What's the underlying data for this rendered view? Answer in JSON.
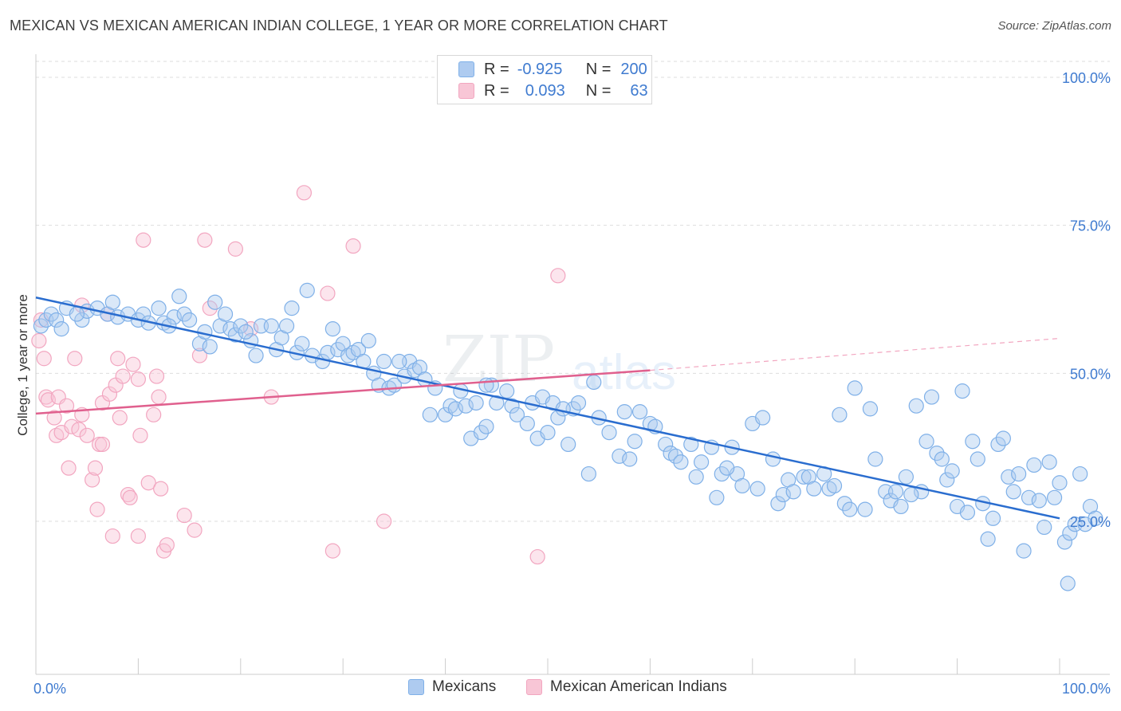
{
  "title": "MEXICAN VS MEXICAN AMERICAN INDIAN COLLEGE, 1 YEAR OR MORE CORRELATION CHART",
  "source": "Source: ZipAtlas.com",
  "watermark": {
    "zip": "ZIP",
    "atlas": "atlas"
  },
  "colors": {
    "blue": "#7fb0e8",
    "blue_line": "#2a6dcf",
    "blue_fill": "#aecbf0",
    "pink": "#f2a6c0",
    "pink_line": "#e0608e",
    "pink_fill": "#f8c6d6",
    "grid": "#dddddd",
    "tick_text": "#3f7bd0"
  },
  "legend": {
    "rows": [
      {
        "r_label": "R =",
        "r_value": "-0.925",
        "n_label": "N =",
        "n_value": "200"
      },
      {
        "r_label": "R =",
        "r_value": "0.093",
        "n_label": "N =",
        "n_value": "63"
      }
    ]
  },
  "bottom_legend": {
    "series1": "Mexicans",
    "series2": "Mexican American Indians"
  },
  "chart_data": {
    "type": "scatter",
    "title": "MEXICAN VS MEXICAN AMERICAN INDIAN COLLEGE, 1 YEAR OR MORE CORRELATION CHART",
    "xlabel": "",
    "ylabel": "College, 1 year or more",
    "xlim": [
      0,
      100
    ],
    "ylim": [
      0,
      105
    ],
    "x_tick_labels": [
      "0.0%",
      "100.0%"
    ],
    "y_ticks": [
      25,
      50,
      75,
      100
    ],
    "y_tick_labels": [
      "25.0%",
      "50.0%",
      "75.0%",
      "100.0%"
    ],
    "series": [
      {
        "name": "Mexicans",
        "R": -0.925,
        "N": 200,
        "trend": {
          "x": [
            0,
            100
          ],
          "y": [
            62.8,
            25.5
          ]
        },
        "points": [
          [
            0.5,
            58
          ],
          [
            1,
            59
          ],
          [
            1.5,
            60
          ],
          [
            2,
            59
          ],
          [
            2.5,
            57.5
          ],
          [
            3,
            61
          ],
          [
            4.5,
            59
          ],
          [
            5,
            60.5
          ],
          [
            6,
            61
          ],
          [
            7,
            60
          ],
          [
            7.5,
            62
          ],
          [
            8,
            59.5
          ],
          [
            9,
            60
          ],
          [
            10,
            59
          ],
          [
            10.5,
            60
          ],
          [
            11,
            58.5
          ],
          [
            12,
            61
          ],
          [
            12.5,
            58.5
          ],
          [
            13.5,
            59.5
          ],
          [
            14,
            63
          ],
          [
            14.5,
            60
          ],
          [
            15,
            59
          ],
          [
            16,
            55
          ],
          [
            16.5,
            57
          ],
          [
            17,
            54.5
          ],
          [
            17.5,
            62
          ],
          [
            18,
            58
          ],
          [
            18.5,
            60
          ],
          [
            19,
            57.5
          ],
          [
            19.5,
            56.5
          ],
          [
            20,
            58
          ],
          [
            21,
            55.5
          ],
          [
            21.5,
            53
          ],
          [
            22,
            58
          ],
          [
            23,
            58
          ],
          [
            23.5,
            54
          ],
          [
            24,
            56
          ],
          [
            25,
            61
          ],
          [
            25.5,
            53.5
          ],
          [
            26,
            55
          ],
          [
            26.5,
            64
          ],
          [
            27,
            53
          ],
          [
            28,
            52
          ],
          [
            28.5,
            53.5
          ],
          [
            29,
            57.5
          ],
          [
            29.5,
            54
          ],
          [
            30,
            55
          ],
          [
            30.5,
            53
          ],
          [
            31,
            53.5
          ],
          [
            31.5,
            54
          ],
          [
            32,
            52
          ],
          [
            32.5,
            55.5
          ],
          [
            33,
            50
          ],
          [
            33.5,
            48
          ],
          [
            34,
            52
          ],
          [
            34.5,
            47.5
          ],
          [
            35,
            48
          ],
          [
            36,
            49.5
          ],
          [
            36.5,
            52
          ],
          [
            37,
            50.5
          ],
          [
            37.5,
            51
          ],
          [
            38,
            49
          ],
          [
            39,
            47.5
          ],
          [
            38.5,
            43
          ],
          [
            40,
            43
          ],
          [
            40.5,
            44.5
          ],
          [
            41,
            44
          ],
          [
            41.5,
            47
          ],
          [
            42,
            44.5
          ],
          [
            42.5,
            39
          ],
          [
            43,
            45
          ],
          [
            43.5,
            40
          ],
          [
            44,
            41
          ],
          [
            44.5,
            48
          ],
          [
            45,
            45
          ],
          [
            46,
            47
          ],
          [
            46.5,
            44.5
          ],
          [
            47,
            43
          ],
          [
            48,
            41.5
          ],
          [
            48.5,
            45
          ],
          [
            49,
            39
          ],
          [
            49.5,
            46
          ],
          [
            50,
            40
          ],
          [
            50.5,
            45
          ],
          [
            51,
            42.5
          ],
          [
            52,
            38
          ],
          [
            52.5,
            44
          ],
          [
            53,
            45
          ],
          [
            54,
            33
          ],
          [
            54.5,
            48.5
          ],
          [
            55,
            42.5
          ],
          [
            56,
            40
          ],
          [
            57,
            36
          ],
          [
            57.5,
            43.5
          ],
          [
            58,
            35.5
          ],
          [
            59,
            43.5
          ],
          [
            60,
            41.5
          ],
          [
            60.5,
            41
          ],
          [
            61.5,
            38
          ],
          [
            62,
            36.5
          ],
          [
            62.5,
            36
          ],
          [
            63,
            35
          ],
          [
            64,
            38
          ],
          [
            64.5,
            32.5
          ],
          [
            65,
            35
          ],
          [
            66,
            37.5
          ],
          [
            66.5,
            29
          ],
          [
            67,
            33
          ],
          [
            68,
            37.5
          ],
          [
            68.5,
            33
          ],
          [
            69,
            31
          ],
          [
            70,
            41.5
          ],
          [
            70.5,
            30.5
          ],
          [
            71,
            42.5
          ],
          [
            72,
            35.5
          ],
          [
            72.5,
            28
          ],
          [
            73,
            29.5
          ],
          [
            73.5,
            32
          ],
          [
            74,
            30
          ],
          [
            75,
            32.5
          ],
          [
            75.5,
            32.5
          ],
          [
            76,
            30.5
          ],
          [
            77,
            33
          ],
          [
            77.5,
            30.5
          ],
          [
            78,
            31
          ],
          [
            78.5,
            43
          ],
          [
            79,
            28
          ],
          [
            79.5,
            27
          ],
          [
            80,
            47.5
          ],
          [
            81,
            27
          ],
          [
            81.5,
            44
          ],
          [
            82,
            35.5
          ],
          [
            83,
            30
          ],
          [
            83.5,
            28.5
          ],
          [
            84,
            30
          ],
          [
            84.5,
            27.5
          ],
          [
            85,
            32.5
          ],
          [
            86,
            44.5
          ],
          [
            86.5,
            30
          ],
          [
            87,
            38.5
          ],
          [
            87.5,
            46
          ],
          [
            88,
            36.5
          ],
          [
            88.5,
            35.5
          ],
          [
            89,
            32
          ],
          [
            89.5,
            33.5
          ],
          [
            90,
            27.5
          ],
          [
            90.5,
            47
          ],
          [
            91,
            26.5
          ],
          [
            91.5,
            38.5
          ],
          [
            92,
            35.5
          ],
          [
            92.5,
            28
          ],
          [
            93,
            22
          ],
          [
            93.5,
            25.5
          ],
          [
            94,
            38
          ],
          [
            94.5,
            39
          ],
          [
            95,
            32.5
          ],
          [
            95.5,
            30
          ],
          [
            96,
            33
          ],
          [
            96.5,
            20
          ],
          [
            97,
            29
          ],
          [
            97.5,
            34.5
          ],
          [
            98,
            28.5
          ],
          [
            98.5,
            24
          ],
          [
            99,
            35
          ],
          [
            99.5,
            29
          ],
          [
            100,
            31.5
          ],
          [
            100.5,
            21.5
          ],
          [
            101,
            23
          ],
          [
            101.5,
            24.5
          ],
          [
            102,
            33
          ],
          [
            102.5,
            24.5
          ],
          [
            103,
            27.5
          ],
          [
            103.5,
            25.5
          ],
          [
            100.8,
            14.5
          ],
          [
            13,
            58
          ],
          [
            4,
            60
          ],
          [
            20.5,
            57
          ],
          [
            24.5,
            58
          ],
          [
            35.5,
            52
          ],
          [
            44,
            48
          ],
          [
            51.5,
            44
          ],
          [
            58.5,
            38.5
          ],
          [
            67.5,
            34
          ],
          [
            85.5,
            29.5
          ]
        ]
      },
      {
        "name": "Mexican American Indians",
        "R": 0.093,
        "N": 63,
        "trend": {
          "x": [
            0,
            60
          ],
          "y": [
            43.2,
            50.5
          ]
        },
        "trend_dashed": {
          "x": [
            60,
            100
          ],
          "y": [
            50.5,
            55.9
          ]
        },
        "points": [
          [
            0.3,
            55.5
          ],
          [
            0.5,
            59
          ],
          [
            0.8,
            52.5
          ],
          [
            1,
            46
          ],
          [
            1.2,
            45.5
          ],
          [
            1.8,
            42.5
          ],
          [
            2,
            39.5
          ],
          [
            2.2,
            46
          ],
          [
            2.5,
            40
          ],
          [
            3,
            44.5
          ],
          [
            3.2,
            34
          ],
          [
            3.5,
            41
          ],
          [
            3.8,
            52.5
          ],
          [
            4.2,
            40.5
          ],
          [
            4.5,
            43
          ],
          [
            4.5,
            61.5
          ],
          [
            5,
            39.5
          ],
          [
            5.5,
            32
          ],
          [
            5.8,
            34
          ],
          [
            6,
            27
          ],
          [
            6.2,
            38
          ],
          [
            6.5,
            38
          ],
          [
            6.5,
            45
          ],
          [
            7,
            60
          ],
          [
            7.2,
            46.5
          ],
          [
            7.5,
            22.5
          ],
          [
            7.8,
            48
          ],
          [
            8,
            52.5
          ],
          [
            8.2,
            42.5
          ],
          [
            8.5,
            49.5
          ],
          [
            9,
            29.5
          ],
          [
            9.2,
            29
          ],
          [
            9.5,
            51.5
          ],
          [
            10,
            49
          ],
          [
            10,
            22.5
          ],
          [
            10.2,
            39.5
          ],
          [
            10.5,
            72.5
          ],
          [
            11,
            31.5
          ],
          [
            11.5,
            43
          ],
          [
            11.8,
            49.5
          ],
          [
            12,
            46
          ],
          [
            12.2,
            30.5
          ],
          [
            12.5,
            20
          ],
          [
            12.8,
            21
          ],
          [
            14.5,
            26
          ],
          [
            15.5,
            23.5
          ],
          [
            16,
            53
          ],
          [
            16.5,
            72.5
          ],
          [
            17,
            61
          ],
          [
            19.5,
            71
          ],
          [
            21,
            57.5
          ],
          [
            23,
            46
          ],
          [
            26.2,
            80.5
          ],
          [
            28.5,
            63.5
          ],
          [
            29,
            20
          ],
          [
            31,
            71.5
          ],
          [
            34,
            25
          ],
          [
            49,
            19
          ],
          [
            51,
            66.5
          ]
        ]
      }
    ]
  }
}
